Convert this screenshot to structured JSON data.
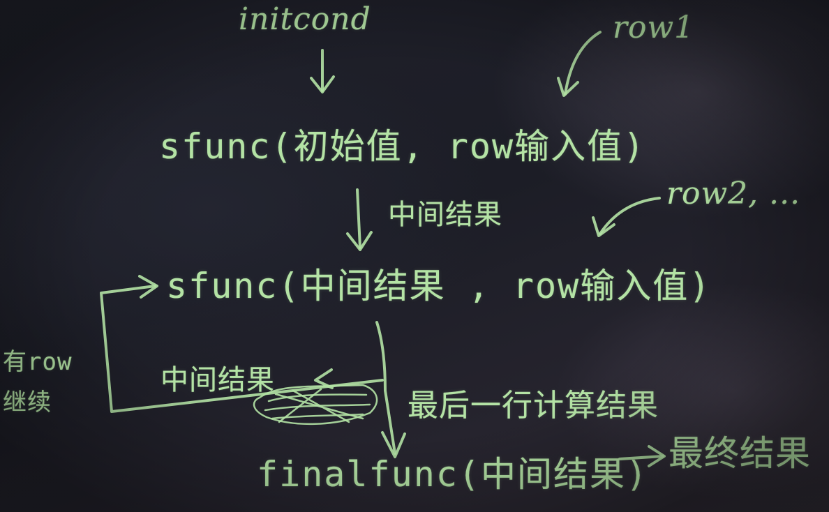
{
  "labels": {
    "initcond": "initcond",
    "row1": "row1",
    "sfunc_first": "sfunc(初始值, row输入值)",
    "mid_result_down": "中间结果",
    "row2": "row2, ...",
    "sfunc_loop": "sfunc(中间结果 , row输入值)",
    "has_row_continue": "有row 继续",
    "mid_result_back": "中间结果",
    "last_row_result": "最后一行计算结果",
    "finalfunc": "finalfunc(中间结果)",
    "final_result": "最终结果"
  },
  "colors": {
    "chalk": "#b4e3a5",
    "board": "#1c1d26"
  }
}
